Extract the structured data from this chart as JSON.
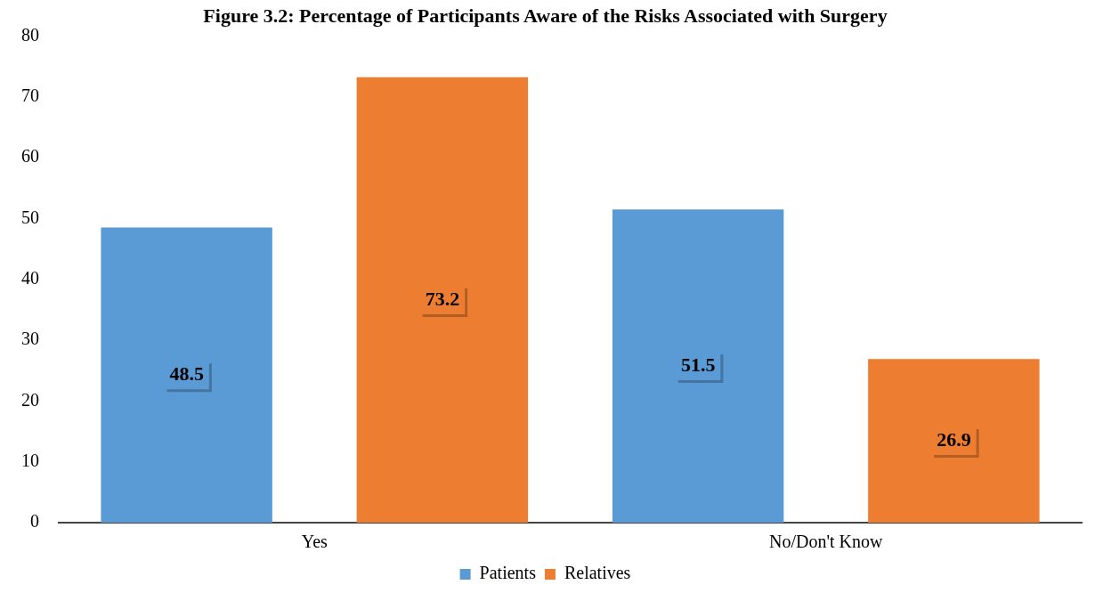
{
  "chart_data": {
    "type": "bar",
    "title": "Figure 3.2: Percentage of Participants Aware of the Risks Associated with Surgery",
    "categories": [
      "Yes",
      "No/Don't Know"
    ],
    "series": [
      {
        "name": "Patients",
        "color": "#5b9bd5",
        "values": [
          48.5,
          51.5
        ]
      },
      {
        "name": "Relatives",
        "color": "#ed7d31",
        "values": [
          73.2,
          26.9
        ]
      }
    ],
    "ylim": [
      0,
      80
    ],
    "yticks": [
      0,
      10,
      20,
      30,
      40,
      50,
      60,
      70,
      80
    ],
    "grid": false,
    "legend": "bottom",
    "data_labels": true
  }
}
